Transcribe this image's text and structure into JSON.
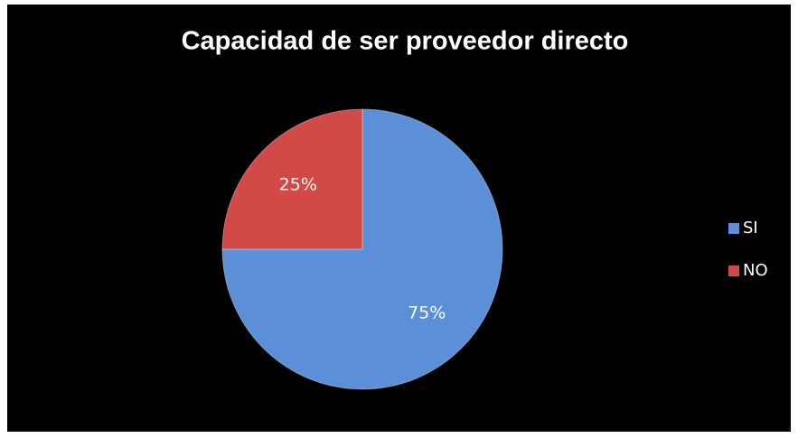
{
  "chart_data": {
    "type": "pie",
    "title": "Capacidad de ser proveedor directo",
    "categories": [
      "SI",
      "NO"
    ],
    "values": [
      75,
      25
    ],
    "value_labels": [
      "75%",
      "25%"
    ],
    "colors": [
      "#5b8fd8",
      "#d24a47"
    ],
    "legend": "right"
  }
}
